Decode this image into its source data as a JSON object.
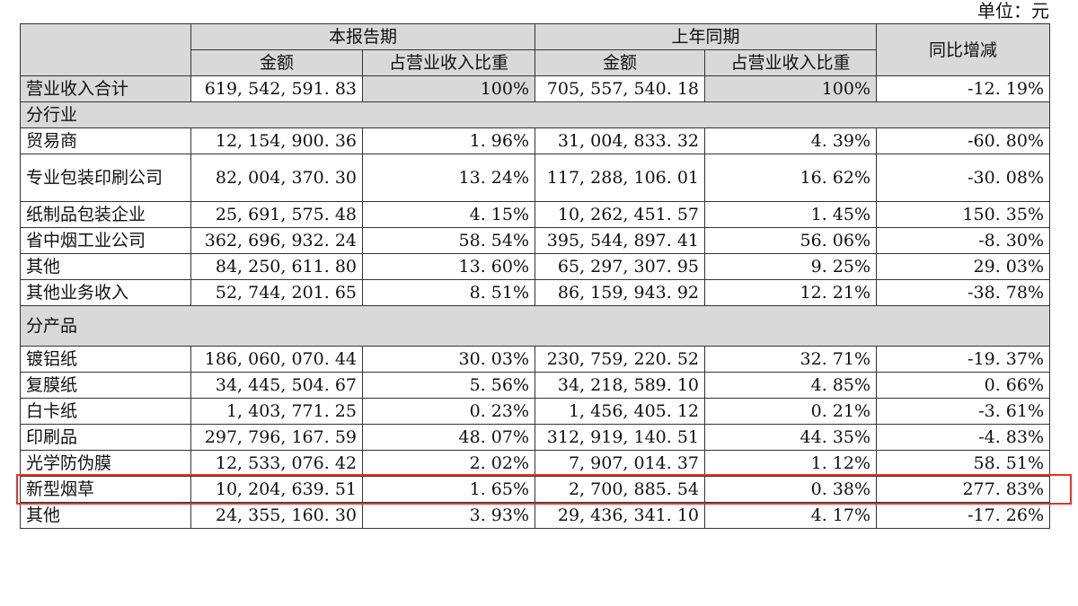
{
  "unit_label": "单位：元",
  "header": {
    "group_current": "本报告期",
    "group_prior": "上年同期",
    "yoy": "同比增减",
    "amount": "金额",
    "share": "占营业收入比重"
  },
  "total": {
    "label": "营业收入合计",
    "cur_amount": "619, 542, 591. 83",
    "cur_share": "100%",
    "prev_amount": "705, 557, 540. 18",
    "prev_share": "100%",
    "yoy": "-12. 19%"
  },
  "sections": [
    {
      "title": "分行业",
      "rows": [
        {
          "label": "贸易商",
          "cur_amount": "12, 154, 900. 36",
          "cur_share": "1. 96%",
          "prev_amount": "31, 004, 833. 32",
          "prev_share": "4. 39%",
          "yoy": "-60. 80%"
        },
        {
          "label": "专业包装印刷公司",
          "cur_amount": "82, 004, 370. 30",
          "cur_share": "13. 24%",
          "prev_amount": "117, 288, 106. 01",
          "prev_share": "16. 62%",
          "yoy": "-30. 08%"
        },
        {
          "label": "纸制品包装企业",
          "cur_amount": "25, 691, 575. 48",
          "cur_share": "4. 15%",
          "prev_amount": "10, 262, 451. 57",
          "prev_share": "1. 45%",
          "yoy": "150. 35%"
        },
        {
          "label": "省中烟工业公司",
          "cur_amount": "362, 696, 932. 24",
          "cur_share": "58. 54%",
          "prev_amount": "395, 544, 897. 41",
          "prev_share": "56. 06%",
          "yoy": "-8. 30%"
        },
        {
          "label": "其他",
          "cur_amount": "84, 250, 611. 80",
          "cur_share": "13. 60%",
          "prev_amount": "65, 297, 307. 95",
          "prev_share": "9. 25%",
          "yoy": "29. 03%"
        },
        {
          "label": "其他业务收入",
          "cur_amount": "52, 744, 201. 65",
          "cur_share": "8. 51%",
          "prev_amount": "86, 159, 943. 92",
          "prev_share": "12. 21%",
          "yoy": "-38. 78%"
        }
      ]
    },
    {
      "title": "分产品",
      "rows": [
        {
          "label": "镀铝纸",
          "cur_amount": "186, 060, 070. 44",
          "cur_share": "30. 03%",
          "prev_amount": "230, 759, 220. 52",
          "prev_share": "32. 71%",
          "yoy": "-19. 37%"
        },
        {
          "label": "复膜纸",
          "cur_amount": "34, 445, 504. 67",
          "cur_share": "5. 56%",
          "prev_amount": "34, 218, 589. 10",
          "prev_share": "4. 85%",
          "yoy": "0. 66%"
        },
        {
          "label": "白卡纸",
          "cur_amount": "1, 403, 771. 25",
          "cur_share": "0. 23%",
          "prev_amount": "1, 456, 405. 12",
          "prev_share": "0. 21%",
          "yoy": "-3. 61%"
        },
        {
          "label": "印刷品",
          "cur_amount": "297, 796, 167. 59",
          "cur_share": "48. 07%",
          "prev_amount": "312, 919, 140. 51",
          "prev_share": "44. 35%",
          "yoy": "-4. 83%"
        },
        {
          "label": "光学防伪膜",
          "cur_amount": "12, 533, 076. 42",
          "cur_share": "2. 02%",
          "prev_amount": "7, 907, 014. 37",
          "prev_share": "1. 12%",
          "yoy": "58. 51%"
        },
        {
          "label": "新型烟草",
          "cur_amount": "10, 204, 639. 51",
          "cur_share": "1. 65%",
          "prev_amount": "2, 700, 885. 54",
          "prev_share": "0. 38%",
          "yoy": "277. 83%"
        },
        {
          "label": "其他",
          "cur_amount": "24, 355, 160. 30",
          "cur_share": "3. 93%",
          "prev_amount": "29, 436, 341. 10",
          "prev_share": "4. 17%",
          "yoy": "-17. 26%"
        }
      ]
    }
  ],
  "colors": {
    "header_fill": "#d9d9d9",
    "highlight_border": "#e8312f"
  }
}
